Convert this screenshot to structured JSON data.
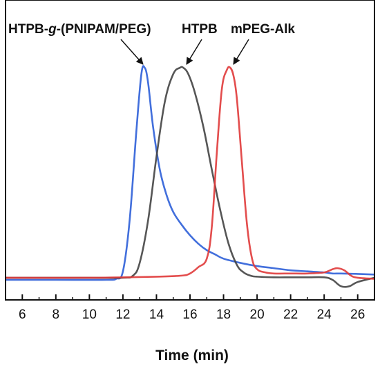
{
  "chart_data": {
    "type": "line",
    "xlabel": "Time (min)",
    "ylabel": "",
    "xlim": [
      5,
      27
    ],
    "ylim": [
      0,
      1.1
    ],
    "x_ticks": [
      6,
      8,
      10,
      12,
      14,
      16,
      18,
      20,
      22,
      24,
      26
    ],
    "grid": false,
    "legend": "none",
    "series": [
      {
        "name": "HTPB-g-(PNIPAM/PEG)",
        "color": "#2d5fd8",
        "x": [
          5,
          8,
          11,
          11.6,
          12.0,
          12.4,
          12.8,
          13.1,
          13.3,
          13.5,
          13.8,
          14.2,
          14.6,
          15.0,
          15.5,
          16.0,
          16.5,
          17.0,
          17.5,
          18.0,
          19.0,
          20.0,
          21.0,
          22.0,
          23.0,
          24.0,
          24.5,
          25.0,
          26.0,
          27.0
        ],
        "y": [
          0.0,
          0.0,
          0.0,
          0.005,
          0.04,
          0.28,
          0.7,
          0.97,
          1.0,
          0.93,
          0.72,
          0.52,
          0.4,
          0.32,
          0.26,
          0.21,
          0.17,
          0.14,
          0.12,
          0.1,
          0.08,
          0.065,
          0.055,
          0.045,
          0.04,
          0.035,
          0.03,
          0.03,
          0.028,
          0.025
        ]
      },
      {
        "name": "HTPB",
        "color": "#444444",
        "x": [
          5,
          10,
          12,
          12.6,
          13.0,
          13.5,
          14.0,
          14.5,
          15.0,
          15.4,
          15.6,
          15.9,
          16.3,
          16.8,
          17.3,
          17.8,
          18.3,
          18.8,
          19.2,
          19.6,
          20.0,
          21.0,
          22.0,
          23.0,
          24.0,
          24.5,
          25.0,
          25.5,
          26.0,
          27.0
        ],
        "y": [
          0.01,
          0.01,
          0.01,
          0.02,
          0.08,
          0.28,
          0.58,
          0.84,
          0.97,
          1.0,
          1.0,
          0.97,
          0.88,
          0.72,
          0.52,
          0.33,
          0.17,
          0.07,
          0.035,
          0.02,
          0.015,
          0.012,
          0.012,
          0.012,
          0.012,
          0.0,
          -0.03,
          -0.03,
          -0.01,
          0.01
        ]
      },
      {
        "name": "mPEG-Alk",
        "color": "#e03a3a",
        "x": [
          5,
          10,
          14,
          15.5,
          16.0,
          16.5,
          17.0,
          17.3,
          17.6,
          17.9,
          18.2,
          18.4,
          18.6,
          18.8,
          19.1,
          19.4,
          19.7,
          20.0,
          20.5,
          21.0,
          22.0,
          23.0,
          24.0,
          24.5,
          24.8,
          25.2,
          25.6,
          26.0,
          27.0
        ],
        "y": [
          0.01,
          0.01,
          0.015,
          0.02,
          0.03,
          0.06,
          0.1,
          0.25,
          0.6,
          0.9,
          0.99,
          1.0,
          0.96,
          0.85,
          0.55,
          0.26,
          0.1,
          0.05,
          0.035,
          0.03,
          0.03,
          0.03,
          0.035,
          0.05,
          0.055,
          0.045,
          0.02,
          0.01,
          0.005
        ]
      }
    ],
    "annotations": [
      {
        "text_prefix": "HTPB-",
        "text_italic": "g",
        "text_suffix": "-(PNIPAM/PEG)",
        "points_to_series": "HTPB-g-(PNIPAM/PEG)"
      },
      {
        "text": "HTPB",
        "points_to_series": "HTPB"
      },
      {
        "text": "mPEG-Alk",
        "points_to_series": "mPEG-Alk"
      }
    ]
  }
}
